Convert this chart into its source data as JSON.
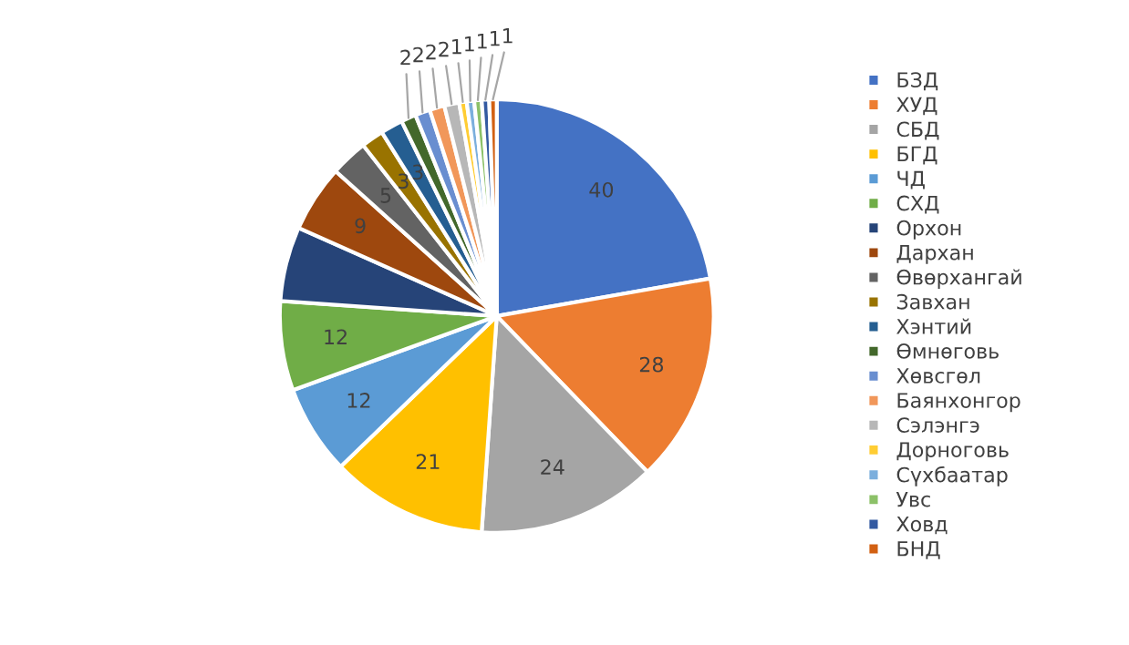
{
  "chart_data": {
    "type": "pie",
    "categories": [
      "БЗД",
      "ХУД",
      "СБД",
      "БГД",
      "ЧД",
      "СХД",
      "Орхон",
      "Дархан",
      "Өвөрхангай",
      "Завхан",
      "Хэнтий",
      "Өмнөговь",
      "Хөвсгөл",
      "Баянхонгор",
      "Сэлэнгэ",
      "Дорноговь",
      "Сүхбаатар",
      "Увс",
      "Ховд",
      "БНД"
    ],
    "values": [
      40,
      28,
      24,
      21,
      12,
      12,
      10,
      9,
      5,
      3,
      3,
      2,
      2,
      2,
      2,
      1,
      1,
      1,
      1,
      1
    ],
    "value_labels": [
      "40",
      "28",
      "24",
      "21",
      "12",
      "12",
      null,
      "9",
      "5",
      "3",
      "3",
      "2",
      "2",
      "2",
      "2",
      "1",
      "1",
      "1",
      "1",
      "1"
    ],
    "colors": [
      "#4472c4",
      "#ed7d31",
      "#a5a5a5",
      "#ffc000",
      "#5b9bd5",
      "#70ad47",
      "#264478",
      "#9e480e",
      "#636363",
      "#997300",
      "#255e91",
      "#43682b",
      "#698ed0",
      "#f1975a",
      "#b7b7b7",
      "#ffcd33",
      "#7cafdd",
      "#8cc168",
      "#335aa1",
      "#d26012"
    ],
    "legend": "right"
  }
}
